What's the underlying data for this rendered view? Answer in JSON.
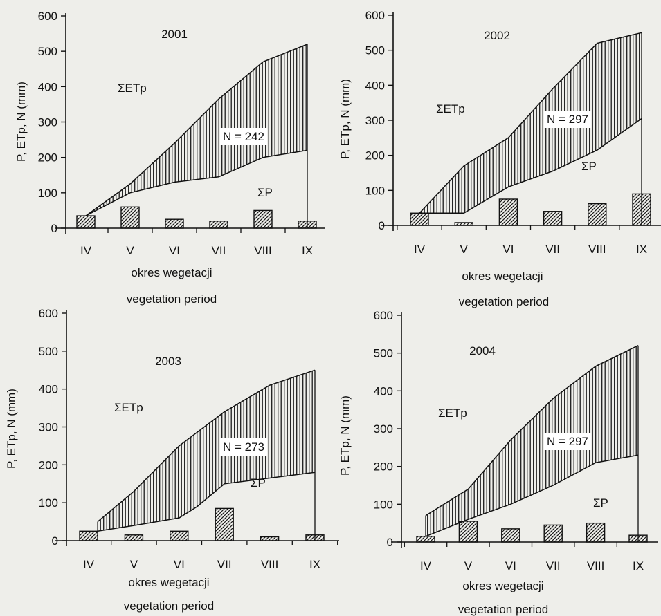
{
  "colors": {
    "ink": "#111111",
    "background": "#eeeeea",
    "hatch": "#1a1a1a"
  },
  "chart_data": [
    {
      "type": "line",
      "title": "2001",
      "ylabel": "P, ETp, N (mm)",
      "xlabel": "okres wegetacji",
      "xlabel2": "vegetation period",
      "ylim": [
        0,
        600
      ],
      "yticks": [
        0,
        100,
        200,
        300,
        400,
        500,
        600
      ],
      "categories": [
        "IV",
        "V",
        "VI",
        "VII",
        "VIII",
        "IX"
      ],
      "etp_label": "ΣETp",
      "p_label": "ΣP",
      "n_label": "N = 242",
      "etp_x": [
        0.0,
        1.0,
        2.0,
        3.0,
        4.0,
        5.0
      ],
      "etp_y": [
        35,
        125,
        240,
        365,
        470,
        520
      ],
      "p_x": [
        0.0,
        1.0,
        2.0,
        3.0,
        4.0,
        5.0
      ],
      "p_y": [
        35,
        100,
        130,
        145,
        200,
        220
      ],
      "bars": [
        35,
        60,
        25,
        20,
        50,
        20
      ]
    },
    {
      "type": "line",
      "title": "2002",
      "ylabel": "P, ETp, N (mm)",
      "xlabel": "okres wegetacji",
      "xlabel2": "vegetation period",
      "ylim": [
        0,
        600
      ],
      "yticks": [
        0,
        100,
        200,
        300,
        400,
        500,
        600
      ],
      "categories": [
        "IV",
        "V",
        "VI",
        "VII",
        "VIII",
        "IX"
      ],
      "etp_label": "ΣETp",
      "p_label": "ΣP",
      "n_label": "N = 297",
      "etp_x": [
        0.0,
        1.0,
        2.0,
        3.0,
        4.0,
        5.0
      ],
      "etp_y": [
        35,
        170,
        250,
        390,
        520,
        550
      ],
      "p_x": [
        0.0,
        1.0,
        2.0,
        3.0,
        4.0,
        5.0
      ],
      "p_y": [
        35,
        35,
        110,
        155,
        215,
        305
      ],
      "bars": [
        35,
        8,
        75,
        40,
        62,
        90
      ]
    },
    {
      "type": "line",
      "title": "2003",
      "ylabel": "P, ETp, N (mm)",
      "xlabel": "okres wegetacji",
      "xlabel2": "vegetation period",
      "ylim": [
        0,
        600
      ],
      "yticks": [
        0,
        100,
        200,
        300,
        400,
        500,
        600
      ],
      "categories": [
        "IV",
        "V",
        "VI",
        "VII",
        "VIII",
        "IX"
      ],
      "etp_label": "ΣETp",
      "p_label": "ΣP",
      "n_label": "N = 273",
      "etp_x": [
        0.2,
        1.0,
        2.0,
        3.0,
        4.0,
        5.0
      ],
      "etp_y": [
        50,
        130,
        250,
        340,
        410,
        450
      ],
      "p_x": [
        0.2,
        1.0,
        2.0,
        2.4,
        3.0,
        4.0,
        5.0
      ],
      "p_y": [
        25,
        40,
        60,
        90,
        150,
        165,
        180
      ],
      "bars": [
        25,
        15,
        25,
        85,
        10,
        15
      ]
    },
    {
      "type": "line",
      "title": "2004",
      "ylabel": "P, ETp, N (mm)",
      "xlabel": "okres wegetacji",
      "xlabel2": "vegetation period",
      "ylim": [
        0,
        600
      ],
      "yticks": [
        0,
        100,
        200,
        300,
        400,
        500,
        600
      ],
      "categories": [
        "IV",
        "V",
        "VI",
        "VII",
        "VIII",
        "IX"
      ],
      "etp_label": "ΣETp",
      "p_label": "ΣP",
      "n_label": "N = 297",
      "etp_x": [
        0.0,
        1.0,
        2.0,
        3.0,
        4.0,
        5.0
      ],
      "etp_y": [
        70,
        140,
        270,
        380,
        465,
        520
      ],
      "p_x": [
        0.0,
        1.0,
        2.0,
        3.0,
        4.0,
        5.0
      ],
      "p_y": [
        15,
        60,
        100,
        150,
        210,
        230
      ],
      "bars": [
        15,
        55,
        35,
        45,
        50,
        18
      ]
    }
  ]
}
